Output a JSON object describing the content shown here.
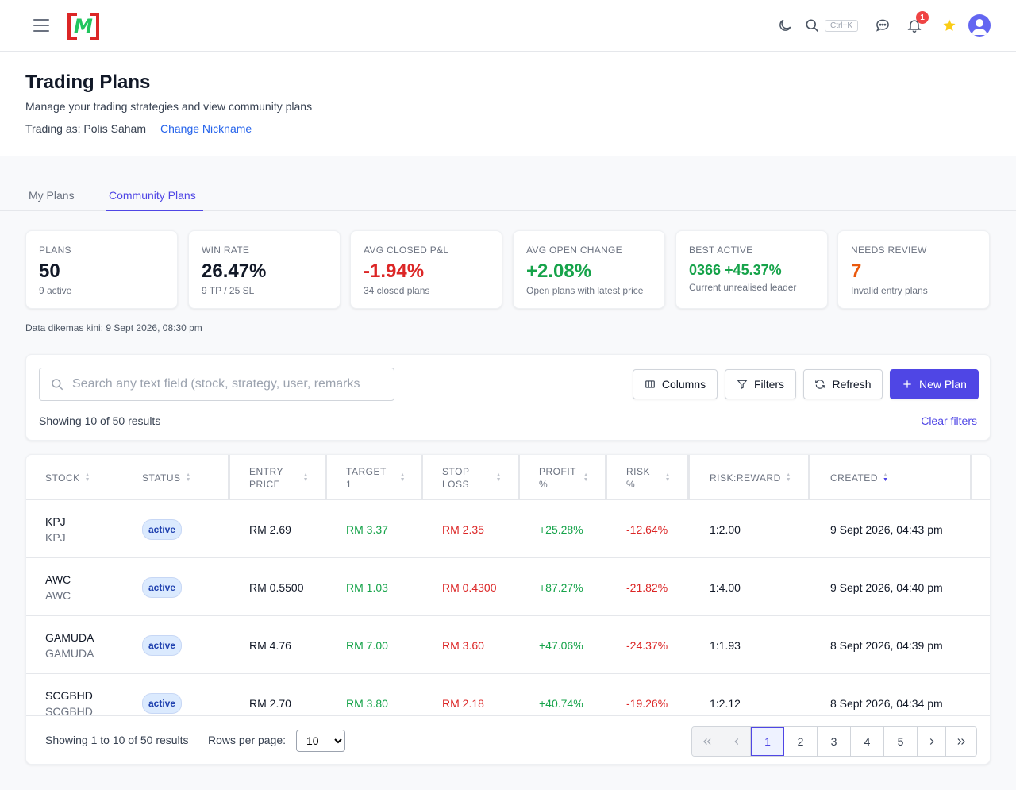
{
  "topbar": {
    "logo_text": "M",
    "search_shortcut": "Ctrl+K",
    "notification_count": "1",
    "icons": [
      "menu-icon",
      "moon-icon",
      "search-icon",
      "chat-icon",
      "bell-icon",
      "star-icon",
      "user-avatar"
    ]
  },
  "header": {
    "title": "Trading Plans",
    "subtitle": "Manage your trading strategies and view community plans",
    "trading_as": "Trading as: Polis Saham",
    "change_nickname": "Change Nickname"
  },
  "tabs": [
    {
      "label": "My Plans",
      "active": false
    },
    {
      "label": "Community Plans",
      "active": true
    }
  ],
  "stats": [
    {
      "label": "PLANS",
      "value": "50",
      "sub": "9 active",
      "color": "#111827"
    },
    {
      "label": "WIN RATE",
      "value": "26.47%",
      "sub": "9 TP / 25 SL",
      "color": "#111827"
    },
    {
      "label": "AVG CLOSED P&L",
      "value": "-1.94%",
      "sub": "34 closed plans",
      "color": "#dc2626"
    },
    {
      "label": "AVG OPEN CHANGE",
      "value": "+2.08%",
      "sub": "Open plans with latest price",
      "color": "#16a34a"
    },
    {
      "label": "BEST ACTIVE",
      "value": "0366 +45.37%",
      "sub": "Current unrealised leader",
      "color": "#16a34a"
    },
    {
      "label": "NEEDS REVIEW",
      "value": "7",
      "sub": "Invalid entry plans",
      "color": "#ea580c"
    }
  ],
  "updated": "Data dikemas kini: 9 Sept 2026, 08:30 pm",
  "toolbar": {
    "search_placeholder": "Search any text field (stock, strategy, user, remarks",
    "columns_label": "Columns",
    "filters_label": "Filters",
    "refresh_label": "Refresh",
    "new_plan_label": "New Plan",
    "showing": "Showing 10 of 50 results",
    "clear_filters": "Clear filters"
  },
  "table": {
    "headers": [
      "STOCK",
      "STATUS",
      "ENTRY\nPRICE",
      "TARGET\n1",
      "STOP\nLOSS",
      "PROFIT\n%",
      "RISK\n%",
      "RISK:REWARD",
      "CREATED"
    ],
    "rows": [
      {
        "stock": "KPJ",
        "stock_sub": "KPJ",
        "status": "active",
        "entry": "RM 2.69",
        "target": "RM 3.37",
        "stop": "RM 2.35",
        "profit": "+25.28%",
        "risk": "-12.64%",
        "rr": "1:2.00",
        "created": "9 Sept 2026, 04:43 pm"
      },
      {
        "stock": "AWC",
        "stock_sub": "AWC",
        "status": "active",
        "entry": "RM 0.5500",
        "target": "RM 1.03",
        "stop": "RM 0.4300",
        "profit": "+87.27%",
        "risk": "-21.82%",
        "rr": "1:4.00",
        "created": "9 Sept 2026, 04:40 pm"
      },
      {
        "stock": "GAMUDA",
        "stock_sub": "GAMUDA",
        "status": "active",
        "entry": "RM 4.76",
        "target": "RM 7.00",
        "stop": "RM 3.60",
        "profit": "+47.06%",
        "risk": "-24.37%",
        "rr": "1:1.93",
        "created": "8 Sept 2026, 04:39 pm"
      },
      {
        "stock": "SCGBHD",
        "stock_sub": "SCGBHD",
        "status": "active",
        "entry": "RM 2.70",
        "target": "RM 3.80",
        "stop": "RM 2.18",
        "profit": "+40.74%",
        "risk": "-19.26%",
        "rr": "1:2.12",
        "created": "8 Sept 2026, 04:34 pm"
      }
    ]
  },
  "footer": {
    "showing": "Showing 1 to 10 of 50 results",
    "rows_per_page_label": "Rows per page:",
    "rows_per_page": "10",
    "pages": [
      "1",
      "2",
      "3",
      "4",
      "5"
    ],
    "current_page": "1"
  }
}
